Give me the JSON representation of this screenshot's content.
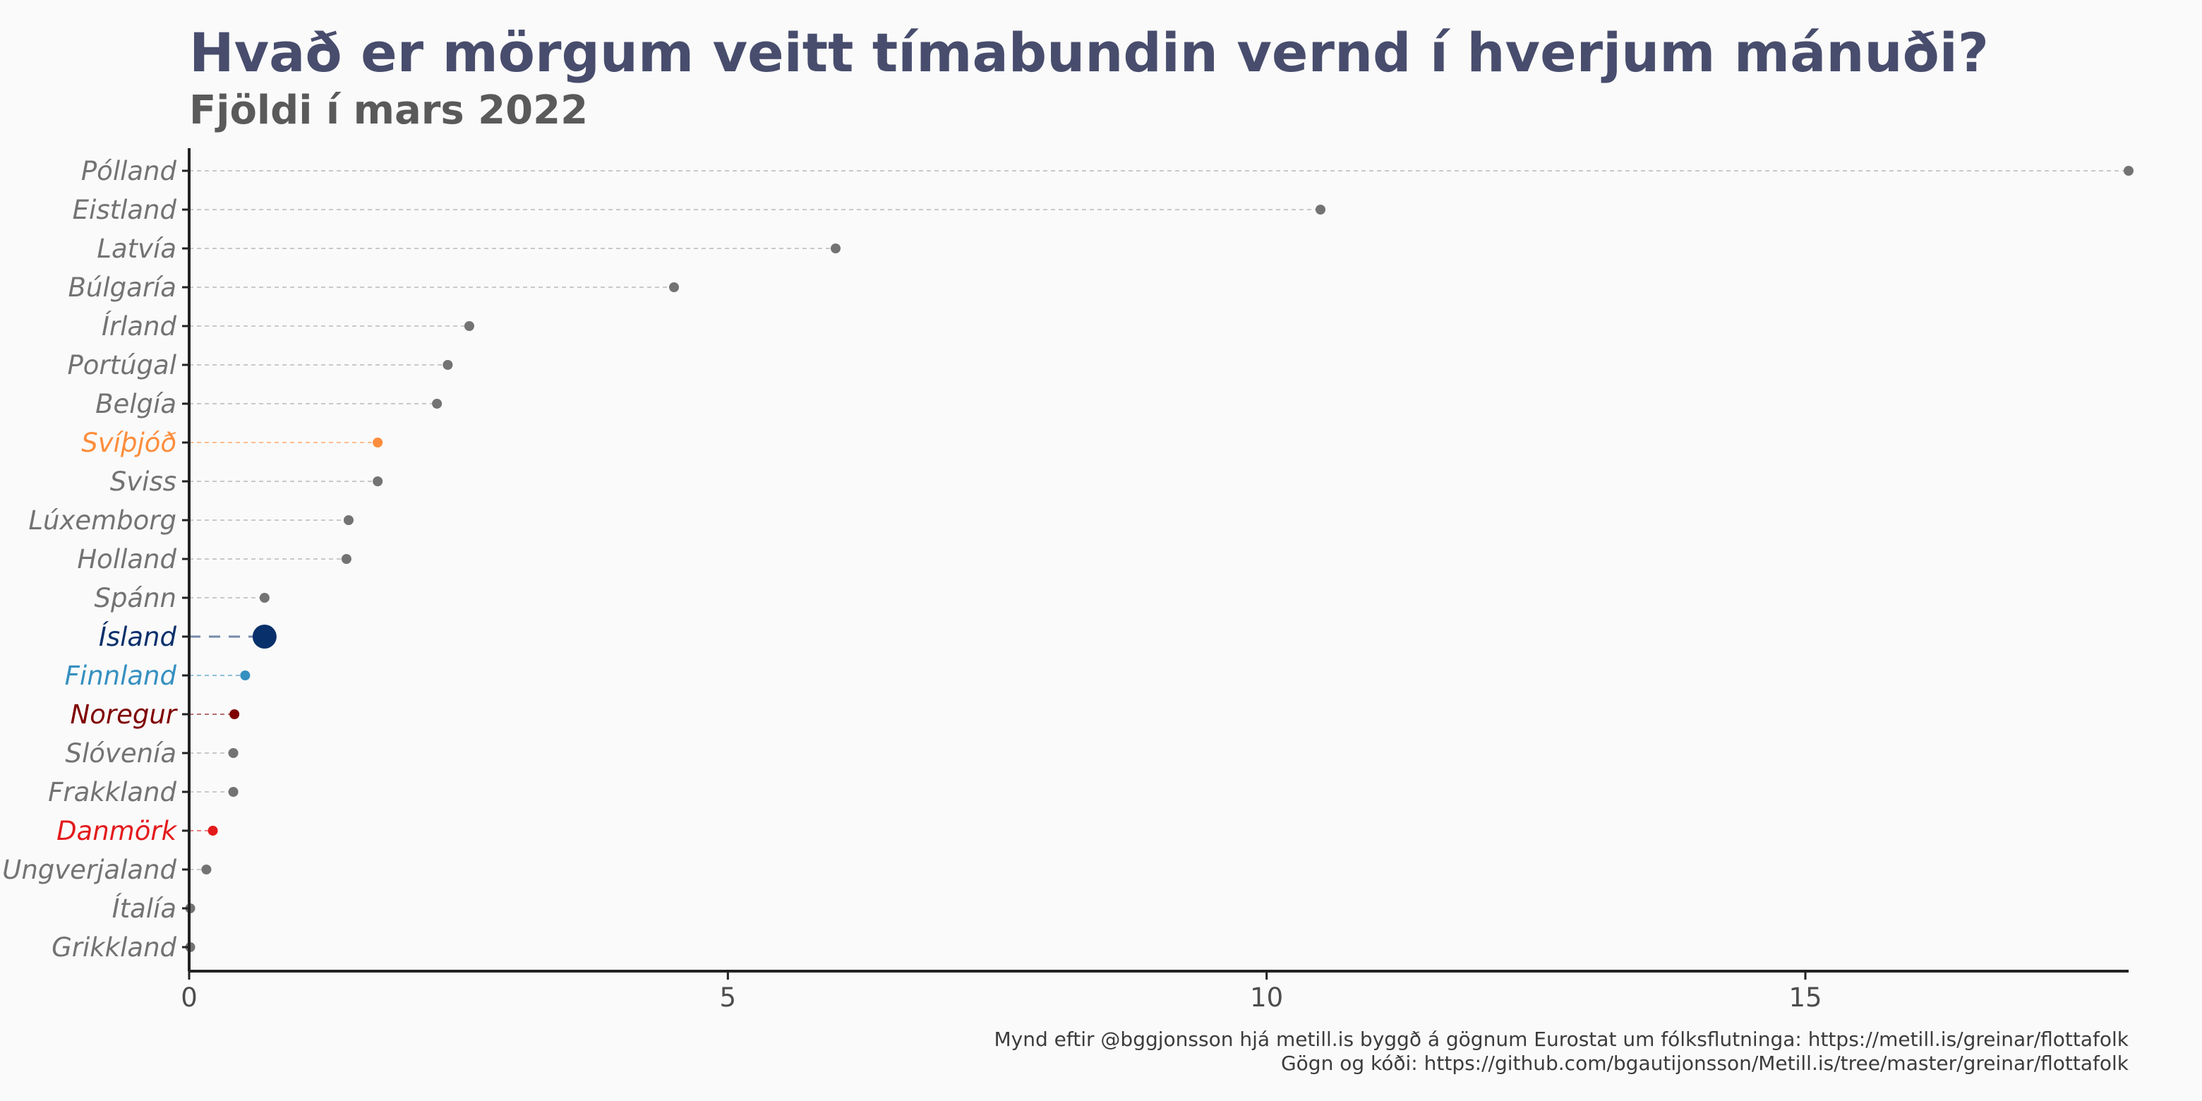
{
  "chart_data": {
    "type": "dot",
    "title": "Hvað er mörgum veitt tímabundin vernd í hverjum mánuði?",
    "subtitle": "Fjöldi í mars 2022",
    "xlabel": "",
    "ylabel": "",
    "xlim": [
      0,
      18
    ],
    "xticks": [
      0,
      5,
      10,
      15
    ],
    "grid": false,
    "categories": [
      "Pólland",
      "Eistland",
      "Latvía",
      "Búlgaría",
      "Írland",
      "Portúgal",
      "Belgía",
      "Svíþjóð",
      "Sviss",
      "Lúxemborg",
      "Holland",
      "Spánn",
      "Ísland",
      "Finnland",
      "Noregur",
      "Slóvenía",
      "Frakkland",
      "Danmörk",
      "Ungverjaland",
      "Ítalía",
      "Grikkland"
    ],
    "values": [
      18.0,
      10.5,
      6.0,
      4.5,
      2.6,
      2.4,
      2.3,
      1.75,
      1.75,
      1.48,
      1.46,
      0.7,
      0.7,
      0.52,
      0.42,
      0.41,
      0.41,
      0.22,
      0.16,
      0.01,
      0.01
    ],
    "highlights": {
      "Svíþjóð": "#fd8d3c",
      "Ísland": "#08306b",
      "Finnland": "#3690c0",
      "Noregur": "#7f0000",
      "Danmörk": "#e31a1c"
    },
    "default_color": "#737373",
    "label_color": "#737373"
  },
  "caption": {
    "line1": "Mynd eftir @bggjonsson hjá metill.is byggð á gögnum Eurostat um fólksflutninga: https://metill.is/greinar/flottafolk",
    "line2": "Gögn og kóði: https://github.com/bgautijonsson/Metill.is/tree/master/greinar/flottafolk"
  }
}
